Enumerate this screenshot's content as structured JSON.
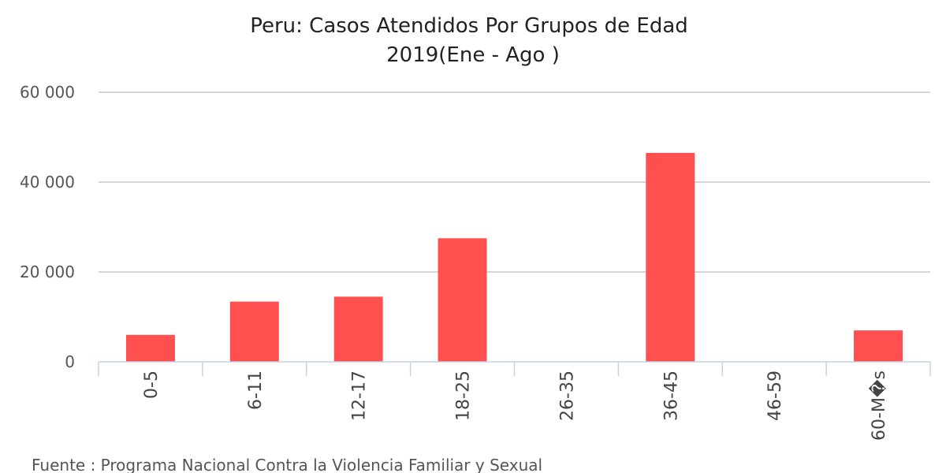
{
  "chart_data": {
    "type": "bar",
    "title": "Peru: Casos Atendidos Por Grupos de Edad",
    "subtitle": "2019(Ene - Ago )",
    "categories": [
      "0-5",
      "6-11",
      "12-17",
      "18-25",
      "26-35",
      "36-45",
      "46-59",
      "60-M�s"
    ],
    "values": [
      6000,
      13400,
      14500,
      27500,
      0,
      46500,
      0,
      7000
    ],
    "ylim": [
      0,
      60000
    ],
    "yticks": [
      0,
      20000,
      40000,
      60000
    ],
    "ytick_labels": [
      "0",
      "20 000",
      "40 000",
      "60 000"
    ],
    "xlabel": "",
    "ylabel": "",
    "grid": true,
    "legend": "none",
    "bar_color": "#ff4f4f",
    "source": "Fuente : Programa Nacional Contra la Violencia Familiar y Sexual"
  }
}
